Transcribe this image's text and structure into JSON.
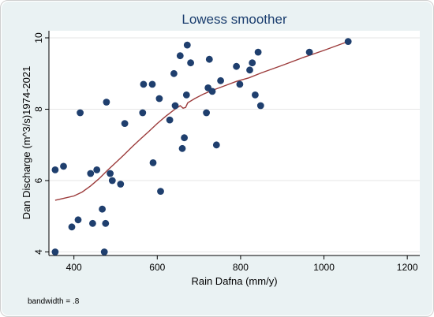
{
  "chart_data": {
    "type": "scatter",
    "title": "Lowess smoother",
    "xlabel": "Rain Dafna (mm/y)",
    "ylabel": "Dan Discharge (m^3/s)1974-2021",
    "xlim": [
      340,
      1230
    ],
    "ylim": [
      3.9,
      10.2
    ],
    "x_ticks": [
      400,
      600,
      800,
      1000,
      1200
    ],
    "y_ticks": [
      4,
      6,
      8,
      10
    ],
    "grid": true,
    "note": "bandwidth = .8",
    "colors": {
      "points": "#1f3f6e",
      "line": "#9c3b3b",
      "plot_bg": "#ffffff",
      "outer_bg": "#eaf2f3",
      "grid": "#e6e6e6"
    },
    "points": [
      [
        355,
        6.3
      ],
      [
        355,
        4.0
      ],
      [
        375,
        6.4
      ],
      [
        395,
        4.7
      ],
      [
        410,
        4.9
      ],
      [
        415,
        7.9
      ],
      [
        440,
        6.2
      ],
      [
        445,
        4.8
      ],
      [
        455,
        6.3
      ],
      [
        468,
        5.2
      ],
      [
        473,
        4.0
      ],
      [
        476,
        4.8
      ],
      [
        478,
        8.2
      ],
      [
        487,
        6.2
      ],
      [
        492,
        6.0
      ],
      [
        512,
        5.9
      ],
      [
        522,
        7.6
      ],
      [
        565,
        7.9
      ],
      [
        567,
        8.7
      ],
      [
        588,
        8.7
      ],
      [
        590,
        6.5
      ],
      [
        605,
        8.3
      ],
      [
        608,
        5.7
      ],
      [
        630,
        7.7
      ],
      [
        640,
        9.0
      ],
      [
        643,
        8.1
      ],
      [
        655,
        9.5
      ],
      [
        660,
        6.9
      ],
      [
        665,
        7.2
      ],
      [
        670,
        8.4
      ],
      [
        672,
        9.8
      ],
      [
        680,
        9.3
      ],
      [
        718,
        7.9
      ],
      [
        722,
        8.6
      ],
      [
        725,
        9.4
      ],
      [
        732,
        8.5
      ],
      [
        742,
        7.0
      ],
      [
        752,
        8.8
      ],
      [
        790,
        9.2
      ],
      [
        798,
        8.7
      ],
      [
        822,
        9.1
      ],
      [
        828,
        9.3
      ],
      [
        835,
        8.4
      ],
      [
        842,
        9.6
      ],
      [
        848,
        8.1
      ],
      [
        965,
        9.6
      ],
      [
        1058,
        9.9
      ]
    ],
    "lowess": [
      [
        355,
        5.45
      ],
      [
        375,
        5.5
      ],
      [
        400,
        5.57
      ],
      [
        420,
        5.68
      ],
      [
        440,
        5.85
      ],
      [
        460,
        6.05
      ],
      [
        480,
        6.28
      ],
      [
        500,
        6.5
      ],
      [
        520,
        6.72
      ],
      [
        540,
        6.95
      ],
      [
        560,
        7.17
      ],
      [
        580,
        7.38
      ],
      [
        600,
        7.6
      ],
      [
        620,
        7.8
      ],
      [
        640,
        7.98
      ],
      [
        655,
        8.1
      ],
      [
        662,
        8.03
      ],
      [
        668,
        8.05
      ],
      [
        673,
        8.18
      ],
      [
        690,
        8.3
      ],
      [
        710,
        8.42
      ],
      [
        730,
        8.52
      ],
      [
        760,
        8.65
      ],
      [
        790,
        8.78
      ],
      [
        820,
        8.88
      ],
      [
        850,
        9.02
      ],
      [
        900,
        9.23
      ],
      [
        950,
        9.45
      ],
      [
        1000,
        9.65
      ],
      [
        1058,
        9.9
      ]
    ]
  }
}
